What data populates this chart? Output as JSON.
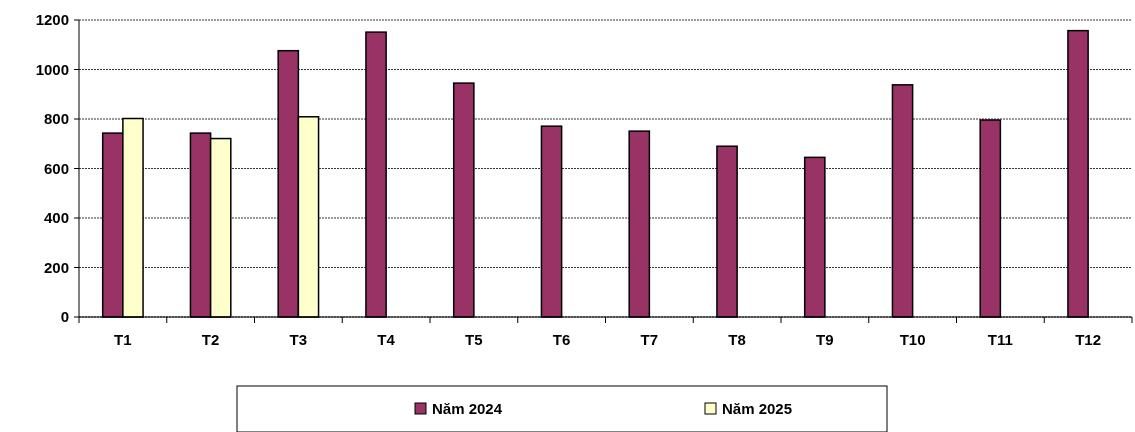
{
  "chart_data": {
    "type": "bar",
    "categories": [
      "T1",
      "T2",
      "T3",
      "T4",
      "T5",
      "T6",
      "T7",
      "T8",
      "T9",
      "T10",
      "T11",
      "T12"
    ],
    "series": [
      {
        "name": "Năm 2024",
        "color": "#993366",
        "values": [
          743,
          743,
          1076,
          1151,
          945,
          771,
          751,
          690,
          645,
          938,
          796,
          1157
        ]
      },
      {
        "name": "Năm 2025",
        "color": "#ffffcc",
        "values": [
          802,
          721,
          809,
          null,
          null,
          null,
          null,
          null,
          null,
          null,
          null,
          null
        ]
      }
    ],
    "ylim": [
      0,
      1200
    ],
    "yticks": [
      0,
      200,
      400,
      600,
      800,
      1000,
      1200
    ],
    "grid": "y",
    "legend": "bottom"
  }
}
